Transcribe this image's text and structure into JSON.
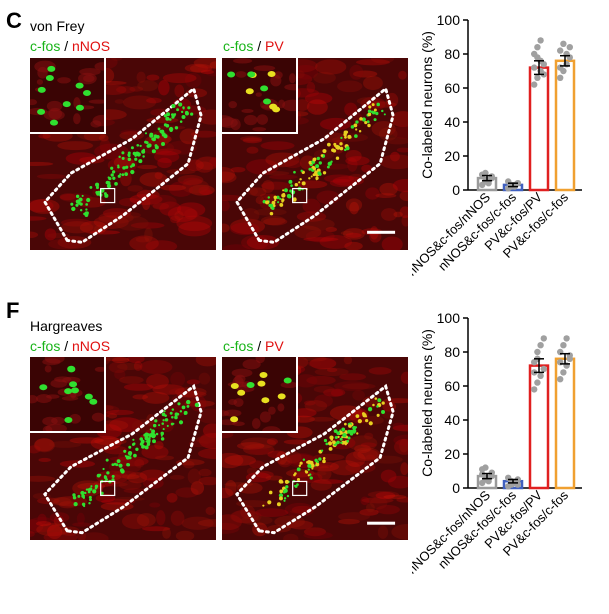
{
  "panels": [
    {
      "letter": "C",
      "condition": "von Frey",
      "image_left": {
        "label_a": "c-fos",
        "sep": " / ",
        "label_b": "nNOS"
      },
      "image_right": {
        "label_a": "c-fos",
        "sep": " / ",
        "label_b": "PV"
      }
    },
    {
      "letter": "F",
      "condition": "Hargreaves",
      "image_left": {
        "label_a": "c-fos",
        "sep": " / ",
        "label_b": "nNOS"
      },
      "image_right": {
        "label_a": "c-fos",
        "sep": " / ",
        "label_b": "PV"
      }
    }
  ],
  "colors": {
    "green": "#19b419",
    "red": "#e01010",
    "bar_red": "#e02020",
    "bar_orange": "#f0a030",
    "bar_blue": "#4060c0",
    "bar_gray": "#9a9a9a",
    "dots": "#a0a0a0"
  },
  "chart_data": [
    {
      "type": "bar",
      "ylabel": "Co-labeled neurons (%)",
      "ylim": [
        0,
        100
      ],
      "yticks": [
        "0",
        "20",
        "40",
        "60",
        "80",
        "100"
      ],
      "categories": [
        "nNOS&c-fos/nNOS",
        "nNOS&c-fos/c-fos",
        "PV&c-fos/PV",
        "PV&c-fos/c-fos"
      ],
      "values": [
        7,
        3,
        72,
        76
      ],
      "errors": [
        1.5,
        1,
        4,
        3
      ],
      "points": [
        [
          3,
          5,
          6,
          8,
          9,
          10,
          4,
          7
        ],
        [
          1,
          2,
          3,
          4,
          5,
          3,
          2,
          4
        ],
        [
          62,
          66,
          70,
          74,
          80,
          84,
          88,
          68,
          72,
          78,
          76
        ],
        [
          66,
          70,
          74,
          78,
          82,
          86,
          80,
          84,
          72
        ]
      ]
    },
    {
      "type": "bar",
      "ylabel": "Co-labeled neurons (%)",
      "ylim": [
        0,
        100
      ],
      "yticks": [
        "0",
        "20",
        "40",
        "60",
        "80",
        "100"
      ],
      "categories": [
        "nNOS&c-fos/nNOS",
        "nNOS&c-fos/c-fos",
        "PV&c-fos/PV",
        "PV&c-fos/c-fos"
      ],
      "values": [
        7,
        4,
        72,
        76
      ],
      "errors": [
        1.5,
        1,
        4,
        3
      ],
      "points": [
        [
          3,
          5,
          6,
          9,
          11,
          12,
          4,
          7,
          8
        ],
        [
          1,
          2,
          3,
          5,
          6,
          4,
          3,
          2
        ],
        [
          58,
          62,
          66,
          70,
          74,
          80,
          84,
          88,
          68,
          76
        ],
        [
          64,
          68,
          72,
          76,
          80,
          84,
          88,
          78,
          74
        ]
      ]
    }
  ]
}
